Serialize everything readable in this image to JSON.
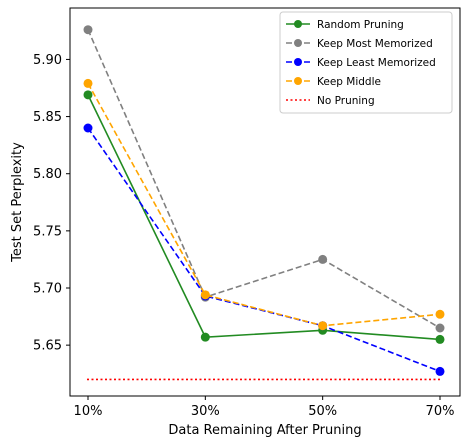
{
  "chart_data": {
    "type": "line",
    "title": "",
    "xlabel": "Data Remaining After Pruning",
    "ylabel": "Test Set Perplexity",
    "categories": [
      "10%",
      "30%",
      "50%",
      "70%"
    ],
    "yticks": [
      "5.65",
      "5.70",
      "5.75",
      "5.80",
      "5.85",
      "5.90"
    ],
    "ylim": [
      5.6055,
      5.945
    ],
    "legend_position": "top-right",
    "grid": false,
    "series": [
      {
        "name": "Random Pruning",
        "values": [
          5.869,
          5.657,
          5.663,
          5.655
        ],
        "color": "#228b22",
        "dash": "solid",
        "marker": "circle"
      },
      {
        "name": "Keep Most Memorized",
        "values": [
          5.926,
          5.692,
          5.725,
          5.665
        ],
        "color": "#808080",
        "dash": "dashed",
        "marker": "circle"
      },
      {
        "name": "Keep Least Memorized",
        "values": [
          5.84,
          5.693,
          5.667,
          5.627
        ],
        "color": "#0000ff",
        "dash": "dashed",
        "marker": "circle"
      },
      {
        "name": "Keep Middle",
        "values": [
          5.879,
          5.694,
          5.667,
          5.677
        ],
        "color": "#ffa500",
        "dash": "dashed",
        "marker": "circle"
      },
      {
        "name": "No Pruning",
        "values": [
          5.62,
          5.62,
          5.62,
          5.62
        ],
        "color": "#ff0000",
        "dash": "dotted",
        "marker": "none"
      }
    ]
  }
}
